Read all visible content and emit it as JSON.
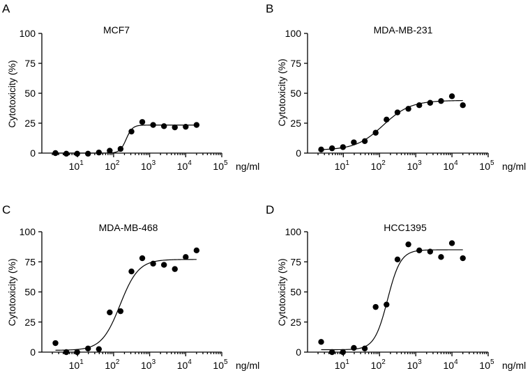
{
  "chart_data": [
    {
      "panel": "A",
      "type": "scatter",
      "title": "MCF7",
      "xlabel": "ng/ml",
      "ylabel": "Cytotoxicity (%)",
      "xscale": "log",
      "xlim": [
        1,
        100000
      ],
      "ylim": [
        0,
        100
      ],
      "yticks": [
        0,
        25,
        50,
        75,
        100
      ],
      "xticks": [
        {
          "base": "10",
          "exp": "1"
        },
        {
          "base": "10",
          "exp": "2"
        },
        {
          "base": "10",
          "exp": "3"
        },
        {
          "base": "10",
          "exp": "4"
        },
        {
          "base": "10",
          "exp": "5"
        }
      ],
      "x": [
        2.44,
        4.88,
        9.77,
        19.5,
        39.1,
        78.1,
        156,
        313,
        625,
        1250,
        2500,
        5000,
        10000,
        20000
      ],
      "y": [
        0,
        -0.5,
        -0.5,
        -0.5,
        0.5,
        2,
        3.5,
        18,
        26,
        23.5,
        22.5,
        21.5,
        22,
        23.5
      ],
      "fit": {
        "bottom": 0,
        "top": 23.4,
        "logEC50": 2.35,
        "hill": 5
      }
    },
    {
      "panel": "B",
      "type": "scatter",
      "title": "MDA-MB-231",
      "xlabel": "ng/ml",
      "ylabel": "Cytotoxicity (%)",
      "xscale": "log",
      "xlim": [
        1,
        100000
      ],
      "ylim": [
        0,
        100
      ],
      "yticks": [
        0,
        25,
        50,
        75,
        100
      ],
      "xticks": [
        {
          "base": "10",
          "exp": "1"
        },
        {
          "base": "10",
          "exp": "2"
        },
        {
          "base": "10",
          "exp": "3"
        },
        {
          "base": "10",
          "exp": "4"
        },
        {
          "base": "10",
          "exp": "5"
        }
      ],
      "x": [
        2.44,
        4.88,
        9.77,
        19.5,
        39.1,
        78.1,
        156,
        313,
        625,
        1250,
        2500,
        5000,
        10000,
        20000
      ],
      "y": [
        3,
        4,
        5,
        9,
        10,
        17,
        28,
        34,
        37,
        40,
        42,
        43.5,
        47.5,
        40
      ],
      "fit": {
        "bottom": 2.5,
        "top": 44,
        "logEC50": 2.1,
        "hill": 1.15
      }
    },
    {
      "panel": "C",
      "type": "scatter",
      "title": "MDA-MB-468",
      "xlabel": "ng/ml",
      "ylabel": "Cytotoxicity (%)",
      "xscale": "log",
      "xlim": [
        1,
        100000
      ],
      "ylim": [
        0,
        100
      ],
      "yticks": [
        0,
        25,
        50,
        75,
        100
      ],
      "xticks": [
        {
          "base": "10",
          "exp": "1"
        },
        {
          "base": "10",
          "exp": "2"
        },
        {
          "base": "10",
          "exp": "3"
        },
        {
          "base": "10",
          "exp": "4"
        },
        {
          "base": "10",
          "exp": "5"
        }
      ],
      "x": [
        2.44,
        4.88,
        9.77,
        19.5,
        39.1,
        78.1,
        156,
        313,
        625,
        1250,
        2500,
        5000,
        10000,
        20000
      ],
      "y": [
        7.5,
        0,
        0,
        3,
        2.5,
        33,
        34,
        67,
        78,
        73.5,
        72.5,
        69,
        79,
        84.5
      ],
      "fit": {
        "bottom": 1.5,
        "top": 77,
        "logEC50": 2.18,
        "hill": 1.7
      }
    },
    {
      "panel": "D",
      "type": "scatter",
      "title": "HCC1395",
      "xlabel": "ng/ml",
      "ylabel": "Cytotoxicity (%)",
      "xscale": "log",
      "xlim": [
        1,
        100000
      ],
      "ylim": [
        0,
        100
      ],
      "yticks": [
        0,
        25,
        50,
        75,
        100
      ],
      "xticks": [
        {
          "base": "10",
          "exp": "1"
        },
        {
          "base": "10",
          "exp": "2"
        },
        {
          "base": "10",
          "exp": "3"
        },
        {
          "base": "10",
          "exp": "4"
        },
        {
          "base": "10",
          "exp": "5"
        }
      ],
      "x": [
        2.44,
        4.88,
        9.77,
        19.5,
        39.1,
        78.1,
        156,
        313,
        625,
        1250,
        2500,
        5000,
        10000,
        20000
      ],
      "y": [
        8.5,
        0,
        0,
        3.5,
        3,
        37.5,
        39.5,
        77,
        89.5,
        84.5,
        83.5,
        79,
        90.5,
        78
      ],
      "fit": {
        "bottom": 2,
        "top": 85,
        "logEC50": 2.22,
        "hill": 2.4
      }
    }
  ]
}
